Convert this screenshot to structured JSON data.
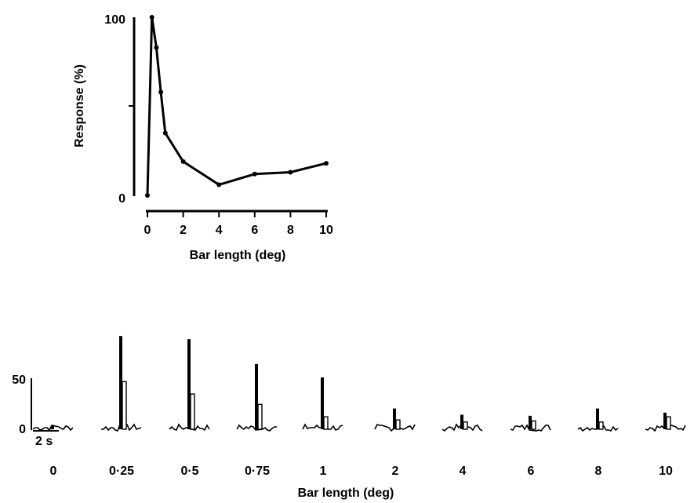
{
  "chart_data": [
    {
      "type": "line",
      "xlabel": "Bar length (deg)",
      "ylabel": "Response (%)",
      "xlim": [
        0,
        10
      ],
      "ylim": [
        0,
        100
      ],
      "xticks": [
        "0",
        "2",
        "4",
        "6",
        "8",
        "10"
      ],
      "yticks": [
        "0",
        "100"
      ],
      "x": [
        0,
        0.25,
        0.5,
        0.75,
        1,
        2,
        4,
        6,
        8,
        10
      ],
      "y": [
        0,
        100,
        83,
        58,
        35,
        19,
        6,
        12,
        13,
        18
      ],
      "grid": false
    },
    {
      "type": "bar",
      "xlabel": "Bar length (deg)",
      "scale_labels": [
        "50",
        "0"
      ],
      "time_scale_label": "2 s",
      "categories": [
        "0",
        "0·25",
        "0·5",
        "0·75",
        "1",
        "2",
        "4",
        "6",
        "8",
        "10"
      ],
      "peak_values": [
        4,
        90,
        87,
        63,
        50,
        20,
        14,
        13,
        20,
        16
      ],
      "secondary_peak_values": [
        0,
        46,
        34,
        24,
        12,
        9,
        7,
        8,
        7,
        12
      ]
    }
  ]
}
